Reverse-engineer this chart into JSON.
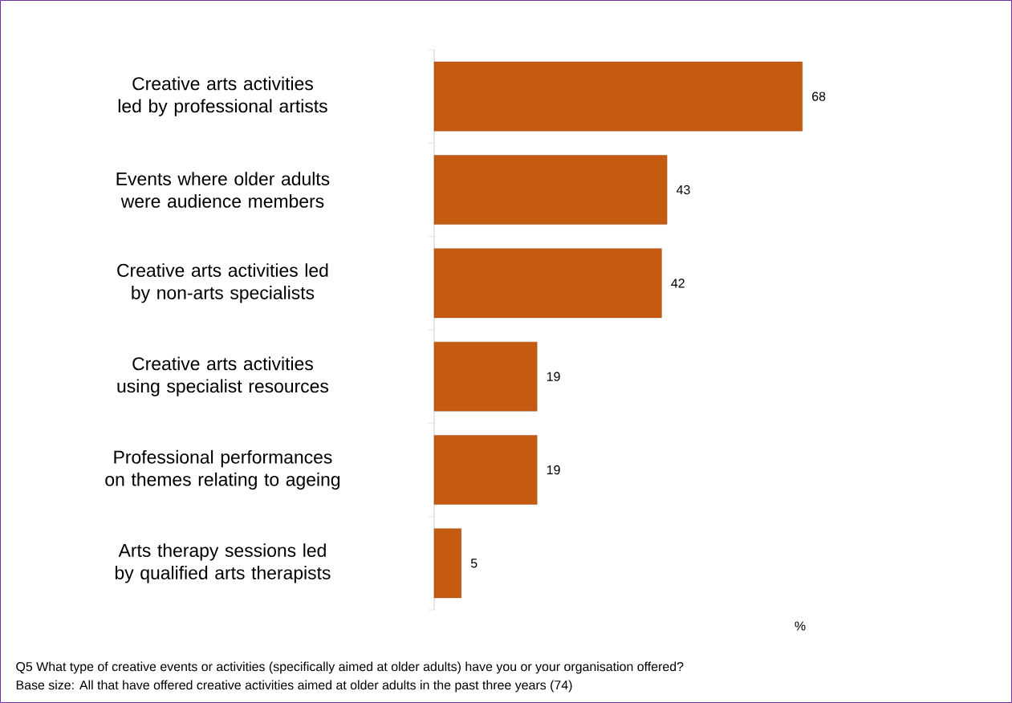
{
  "chart_data": {
    "type": "bar",
    "orientation": "horizontal",
    "categories": [
      "Creative arts activities led by professional artists",
      "Events where older adults were audience members",
      "Creative arts activities led by non-arts specialists",
      "Creative arts activities using specialist resources",
      "Professional performances on themes relating to ageing",
      "Arts therapy sessions led by qualified arts therapists"
    ],
    "values": [
      68,
      43,
      42,
      19,
      19,
      5
    ],
    "color": "#c55a11",
    "data_labels": true,
    "xlabel": "%",
    "annotations": [
      "Q5  What type of creative events or activities (specifically aimed at older adults) have you or your organisation offered?",
      "Base size: All that have offered creative activities aimed at older adults in the past three years (74)"
    ]
  }
}
